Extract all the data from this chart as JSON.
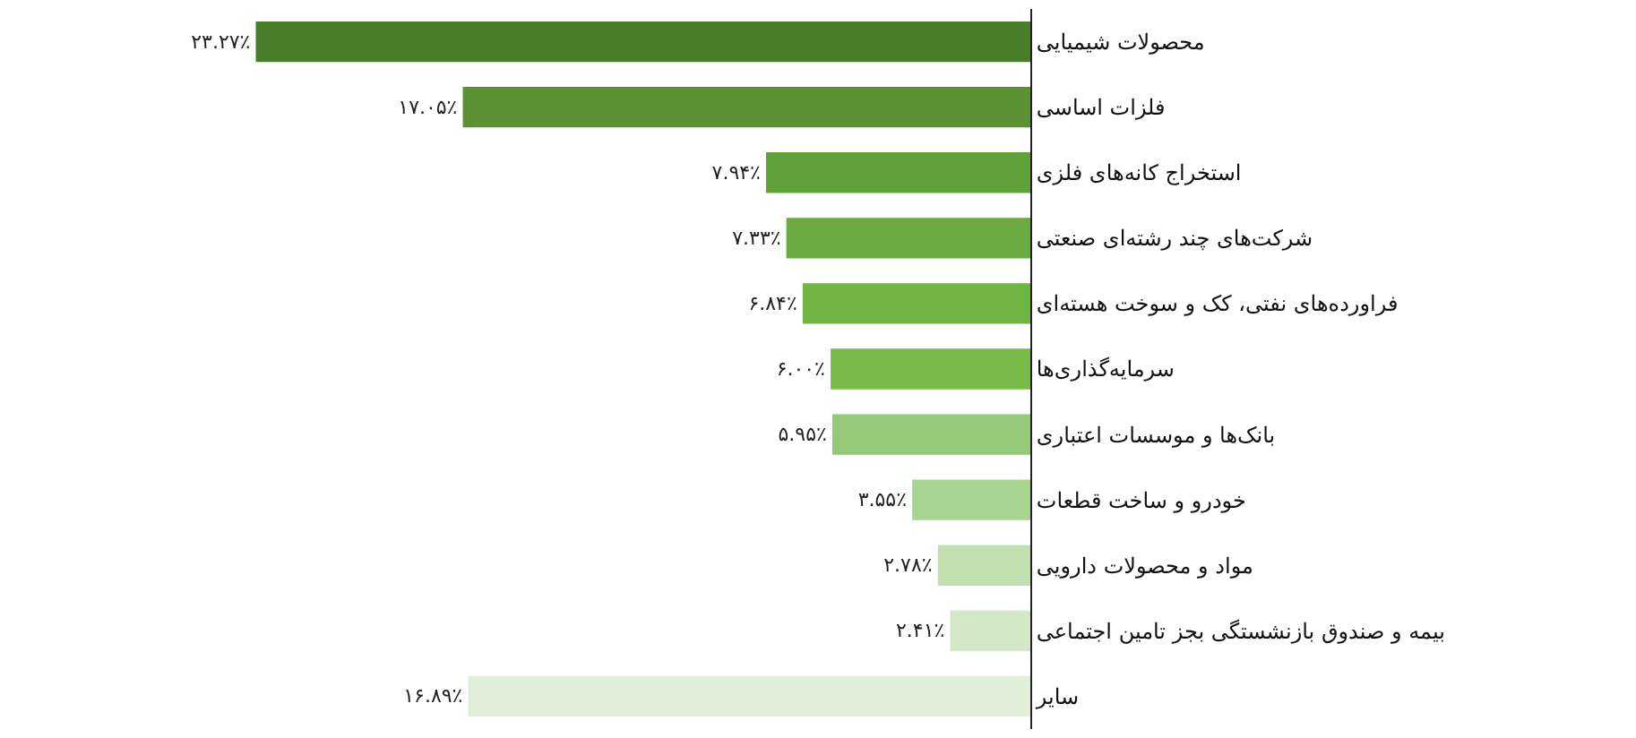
{
  "chart_data": {
    "type": "bar",
    "orientation": "horizontal",
    "categories": [
      "محصولات شیمیایی",
      "فلزات اساسی",
      "استخراج کانه‌های فلزی",
      "شرکت‌های چند رشته‌ای صنعتی",
      "فراورده‌های نفتی، کک و سوخت هسته‌ای",
      "سرمایه‌گذاری‌ها",
      "بانک‌ها و موسسات اعتباری",
      "خودرو و ساخت قطعات",
      "مواد و محصولات دارویی",
      "بیمه و صندوق بازنشستگی بجز تامین اجتماعی",
      "سایر"
    ],
    "values": [
      23.27,
      17.05,
      7.94,
      7.33,
      6.84,
      6.0,
      5.95,
      3.55,
      2.78,
      2.41,
      16.89
    ],
    "value_labels": [
      "۲۳.۲۷٪",
      "۱۷.۰۵٪",
      "۷.۹۴٪",
      "۷.۳۳٪",
      "۶.۸۴٪",
      "۶.۰۰٪",
      "۵.۹۵٪",
      "۳.۵۵٪",
      "۲.۷۸٪",
      "۲.۴۱٪",
      "۱۶.۸۹٪"
    ],
    "colors": [
      "#4a7d2a",
      "#5a9232",
      "#62a03a",
      "#6aaa40",
      "#70b444",
      "#78bb48",
      "#95c97a",
      "#a8d492",
      "#c2e0b0",
      "#d2e8c6",
      "#e0efd8"
    ],
    "tick_labels": "y"
  }
}
